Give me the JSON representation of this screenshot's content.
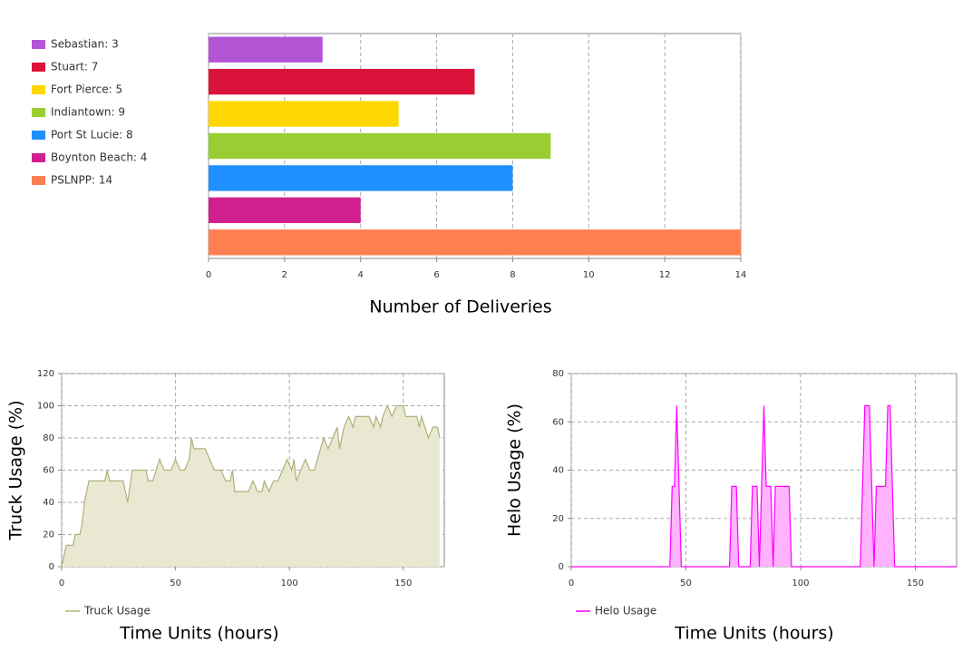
{
  "chart_data": [
    {
      "type": "bar",
      "orientation": "horizontal",
      "categories": [
        "Sebastian: 3",
        "Stuart: 7",
        "Fort Pierce: 5",
        "Indiantown: 9",
        "Port St Lucie: 8",
        "Boynton Beach: 4",
        "PSLNPP: 14"
      ],
      "values": [
        3,
        7,
        5,
        9,
        8,
        4,
        14
      ],
      "colors": [
        "#b455d6",
        "#dc143c",
        "#ffd700",
        "#9acd32",
        "#1e90ff",
        "#d0208f",
        "#ff7f50"
      ],
      "xlabel": "Number of Deliveries",
      "xlim": [
        0,
        14
      ],
      "xticks": [
        0,
        2,
        4,
        6,
        8,
        10,
        12,
        14
      ],
      "grid": true
    },
    {
      "type": "area",
      "xlabel": "Time Units (hours)",
      "ylabel": "Truck Usage (%)",
      "x": [
        0,
        2,
        5,
        6,
        8,
        9,
        10,
        12,
        19,
        20,
        21,
        27,
        29,
        31,
        37,
        38,
        40,
        43,
        45,
        48,
        50,
        52,
        54,
        56,
        57,
        58,
        63,
        65,
        67,
        70,
        72,
        74,
        75,
        76,
        82,
        84,
        86,
        88,
        89,
        91,
        93,
        95,
        97,
        99,
        101,
        102,
        103,
        105,
        107,
        109,
        111,
        115,
        117,
        119,
        121,
        122,
        124,
        126,
        128,
        129,
        135,
        137,
        138,
        140,
        141,
        143,
        145,
        147,
        150,
        151,
        156,
        157,
        158,
        161,
        163,
        165,
        166
      ],
      "series": [
        {
          "name": "Truck Usage",
          "color": "#b0b07a",
          "fill_color": "#e9e9d3",
          "values": [
            0,
            13.3,
            13.3,
            20,
            20,
            26.7,
            40,
            53.3,
            53.3,
            60,
            53.3,
            53.3,
            40,
            60,
            60,
            53.3,
            53.3,
            66.7,
            60,
            60,
            66.7,
            60,
            60,
            66.7,
            80,
            73.3,
            73.3,
            66.7,
            60,
            60,
            53.3,
            53.3,
            60,
            46.7,
            46.7,
            53.3,
            46.7,
            46.7,
            53.3,
            46.7,
            53.3,
            53.3,
            60,
            66.7,
            60,
            66.7,
            53.3,
            60,
            66.7,
            60,
            60,
            80,
            73.3,
            80,
            86.7,
            73.3,
            86.7,
            93.3,
            86.7,
            93.3,
            93.3,
            86.7,
            93.3,
            86.7,
            93.3,
            100,
            93.3,
            100,
            100,
            93.3,
            93.3,
            86.7,
            93.3,
            80,
            86.7,
            86.7,
            80
          ]
        }
      ],
      "xlim": [
        0,
        168
      ],
      "xticks": [
        0,
        50,
        100,
        150
      ],
      "ylim": [
        0,
        120
      ],
      "yticks": [
        0,
        20,
        40,
        60,
        80,
        100,
        120
      ],
      "grid": true
    },
    {
      "type": "area",
      "xlabel": "Time Units (hours)",
      "ylabel": "Helo Usage (%)",
      "x": [
        0,
        43,
        44,
        45,
        46,
        47,
        48,
        69,
        70,
        72,
        73,
        78,
        79,
        81,
        82,
        83,
        84,
        85,
        87,
        88,
        89,
        95,
        96,
        126,
        128,
        130,
        131,
        132,
        133,
        137,
        138,
        139,
        140,
        141,
        168
      ],
      "series": [
        {
          "name": "Helo Usage",
          "color": "#ff00ff",
          "fill_color": "#ffb3ff",
          "values": [
            0,
            0,
            33.3,
            33.3,
            66.7,
            33.3,
            0,
            0,
            33.3,
            33.3,
            0,
            0,
            33.3,
            33.3,
            0,
            33.3,
            66.7,
            33.3,
            33.3,
            0,
            33.3,
            33.3,
            0,
            0,
            66.7,
            66.7,
            33.3,
            0,
            33.3,
            33.3,
            66.7,
            66.7,
            33.3,
            0,
            0
          ]
        }
      ],
      "xlim": [
        0,
        168
      ],
      "xticks": [
        0,
        50,
        100,
        150
      ],
      "ylim": [
        0,
        80
      ],
      "yticks": [
        0,
        20,
        40,
        60,
        80
      ],
      "grid": true
    }
  ]
}
